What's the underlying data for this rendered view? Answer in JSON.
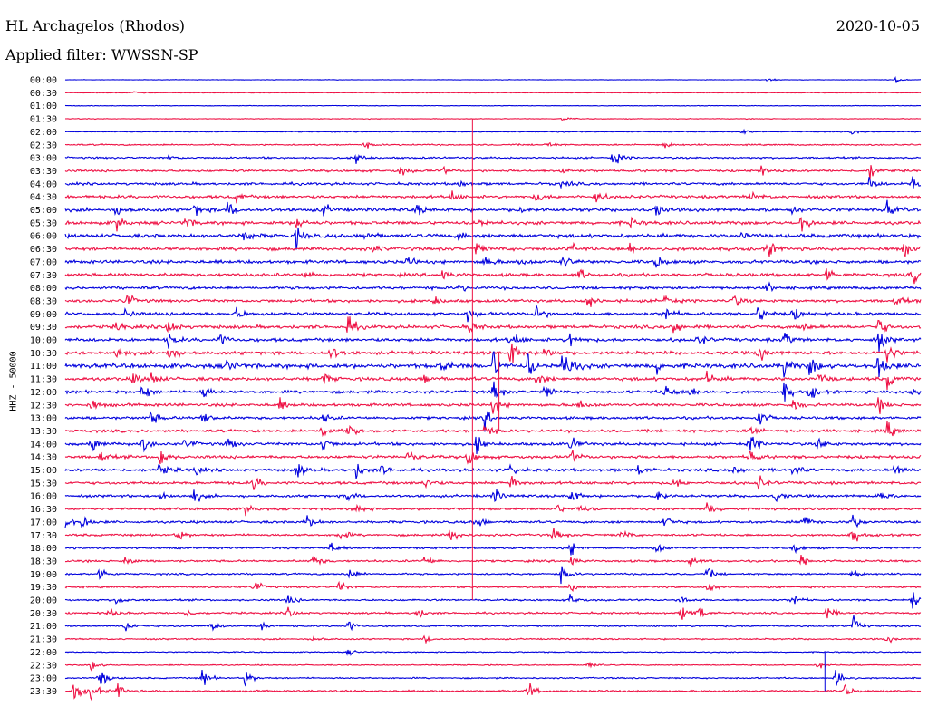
{
  "header": {
    "station": "HL Archagelos (Rhodos)",
    "date": "2020-10-05",
    "filter": "Applied filter: WWSSN-SP"
  },
  "chart_data": {
    "type": "line",
    "title": "HL Archagelos (Rhodos)",
    "subtitle": "Applied filter: WWSSN-SP",
    "date": "2020-10-05",
    "ylabel": "HHZ - 50000",
    "trace_colors": [
      "#0000dd",
      "#ee1144"
    ],
    "tick_labels": [
      "00:00",
      "00:30",
      "01:00",
      "01:30",
      "02:00",
      "02:30",
      "03:00",
      "03:30",
      "04:00",
      "04:30",
      "05:00",
      "05:30",
      "06:00",
      "06:30",
      "07:00",
      "07:30",
      "08:00",
      "08:30",
      "09:00",
      "09:30",
      "10:00",
      "10:30",
      "11:00",
      "11:30",
      "12:00",
      "12:30",
      "13:00",
      "13:30",
      "14:00",
      "14:30",
      "15:00",
      "15:30",
      "16:00",
      "16:30",
      "17:00",
      "17:30",
      "18:00",
      "18:30",
      "19:00",
      "19:30",
      "20:00",
      "20:30",
      "21:00",
      "21:30",
      "22:00",
      "22:30",
      "23:00",
      "23:30"
    ],
    "noise_level": [
      0.3,
      0.4,
      0.3,
      0.4,
      0.5,
      0.8,
      1.0,
      1.2,
      1.4,
      1.6,
      1.8,
      1.8,
      2.0,
      1.8,
      1.8,
      1.8,
      1.6,
      1.6,
      1.7,
      1.8,
      1.8,
      1.8,
      2.4,
      1.8,
      1.6,
      1.6,
      1.5,
      1.5,
      1.6,
      1.6,
      1.6,
      1.5,
      1.4,
      1.3,
      1.3,
      1.2,
      1.1,
      1.1,
      1.0,
      1.0,
      1.0,
      1.0,
      0.9,
      0.8,
      0.6,
      0.6,
      0.8,
      1.0
    ],
    "events": [
      [
        [
          0.82,
          3
        ],
        [
          0.97,
          4
        ]
      ],
      [
        [
          0.08,
          3
        ]
      ],
      [],
      [
        [
          0.58,
          3
        ]
      ],
      [
        [
          0.79,
          4
        ],
        [
          0.92,
          3
        ]
      ],
      [
        [
          0.35,
          4
        ],
        [
          0.56,
          6
        ],
        [
          0.7,
          6
        ]
      ],
      [
        [
          0.12,
          3
        ],
        [
          0.34,
          8
        ],
        [
          0.64,
          12
        ]
      ],
      [
        [
          0.39,
          9
        ],
        [
          0.44,
          5
        ],
        [
          0.58,
          6
        ],
        [
          0.81,
          8
        ],
        [
          0.94,
          12
        ]
      ],
      [
        [
          0.46,
          5
        ],
        [
          0.58,
          6
        ],
        [
          0.94,
          8
        ],
        [
          0.99,
          10
        ]
      ],
      [
        [
          0.2,
          6
        ],
        [
          0.45,
          8
        ],
        [
          0.55,
          9
        ],
        [
          0.62,
          10
        ],
        [
          0.8,
          8
        ]
      ],
      [
        [
          0.06,
          10
        ],
        [
          0.15,
          8
        ],
        [
          0.19,
          12
        ],
        [
          0.3,
          10
        ],
        [
          0.41,
          8
        ],
        [
          0.53,
          6
        ],
        [
          0.69,
          8
        ],
        [
          0.85,
          8
        ],
        [
          0.96,
          10
        ]
      ],
      [
        [
          0.06,
          9
        ],
        [
          0.14,
          7
        ],
        [
          0.27,
          10
        ],
        [
          0.48,
          8
        ],
        [
          0.66,
          6
        ],
        [
          0.86,
          12
        ]
      ],
      [
        [
          0.21,
          10
        ],
        [
          0.27,
          12
        ],
        [
          0.35,
          9
        ],
        [
          0.46,
          6
        ],
        [
          0.79,
          6
        ]
      ],
      [
        [
          0.36,
          6
        ],
        [
          0.48,
          8
        ],
        [
          0.59,
          8
        ],
        [
          0.66,
          9
        ],
        [
          0.82,
          12
        ],
        [
          0.98,
          9
        ]
      ],
      [
        [
          0.4,
          8
        ],
        [
          0.49,
          10
        ],
        [
          0.53,
          6
        ],
        [
          0.58,
          12
        ],
        [
          0.69,
          10
        ]
      ],
      [
        [
          0.28,
          6
        ],
        [
          0.44,
          7
        ],
        [
          0.6,
          8
        ],
        [
          0.89,
          10
        ],
        [
          0.99,
          10
        ]
      ],
      [
        [
          0.46,
          5
        ],
        [
          0.82,
          6
        ]
      ],
      [
        [
          0.07,
          12
        ],
        [
          0.43,
          6
        ],
        [
          0.61,
          10
        ],
        [
          0.7,
          9
        ],
        [
          0.78,
          10
        ],
        [
          0.97,
          8
        ]
      ],
      [
        [
          0.07,
          7
        ],
        [
          0.2,
          8
        ],
        [
          0.47,
          8
        ],
        [
          0.55,
          14
        ],
        [
          0.7,
          12
        ],
        [
          0.81,
          12
        ],
        [
          0.85,
          10
        ]
      ],
      [
        [
          0.06,
          6
        ],
        [
          0.12,
          12
        ],
        [
          0.33,
          14
        ],
        [
          0.47,
          10
        ],
        [
          0.71,
          12
        ],
        [
          0.86,
          8
        ],
        [
          0.95,
          14
        ]
      ],
      [
        [
          0.12,
          10
        ],
        [
          0.18,
          8
        ],
        [
          0.52,
          14
        ],
        [
          0.59,
          10
        ],
        [
          0.74,
          8
        ],
        [
          0.84,
          10
        ],
        [
          0.95,
          14
        ]
      ],
      [
        [
          0.06,
          8
        ],
        [
          0.12,
          14
        ],
        [
          0.31,
          10
        ],
        [
          0.52,
          20
        ],
        [
          0.56,
          10
        ],
        [
          0.81,
          12
        ],
        [
          0.96,
          18
        ]
      ],
      [
        [
          0.19,
          12
        ],
        [
          0.44,
          10
        ],
        [
          0.5,
          20
        ],
        [
          0.54,
          18
        ],
        [
          0.58,
          16
        ],
        [
          0.59,
          12
        ],
        [
          0.69,
          10
        ],
        [
          0.84,
          12
        ],
        [
          0.87,
          14
        ],
        [
          0.95,
          22
        ]
      ],
      [
        [
          0.08,
          9
        ],
        [
          0.1,
          8
        ],
        [
          0.3,
          8
        ],
        [
          0.42,
          8
        ],
        [
          0.55,
          12
        ],
        [
          0.75,
          9
        ],
        [
          0.88,
          8
        ],
        [
          0.96,
          14
        ]
      ],
      [
        [
          0.09,
          12
        ],
        [
          0.16,
          10
        ],
        [
          0.5,
          14
        ],
        [
          0.56,
          10
        ],
        [
          0.7,
          14
        ],
        [
          0.73,
          10
        ],
        [
          0.84,
          12
        ],
        [
          0.87,
          10
        ],
        [
          0.99,
          10
        ]
      ],
      [
        [
          0.03,
          8
        ],
        [
          0.25,
          8
        ],
        [
          0.5,
          12
        ],
        [
          0.6,
          8
        ],
        [
          0.85,
          10
        ],
        [
          0.95,
          10
        ]
      ],
      [
        [
          0.1,
          10
        ],
        [
          0.16,
          10
        ],
        [
          0.3,
          8
        ],
        [
          0.49,
          12
        ],
        [
          0.81,
          12
        ]
      ],
      [
        [
          0.3,
          12
        ],
        [
          0.33,
          10
        ],
        [
          0.49,
          10
        ],
        [
          0.8,
          10
        ],
        [
          0.96,
          12
        ]
      ],
      [
        [
          0.03,
          12
        ],
        [
          0.09,
          10
        ],
        [
          0.14,
          8
        ],
        [
          0.19,
          8
        ],
        [
          0.3,
          10
        ],
        [
          0.48,
          12
        ],
        [
          0.59,
          10
        ],
        [
          0.8,
          14
        ],
        [
          0.88,
          10
        ]
      ],
      [
        [
          0.04,
          8
        ],
        [
          0.11,
          14
        ],
        [
          0.4,
          10
        ],
        [
          0.47,
          12
        ],
        [
          0.59,
          10
        ],
        [
          0.8,
          10
        ]
      ],
      [
        [
          0.11,
          10
        ],
        [
          0.15,
          8
        ],
        [
          0.27,
          12
        ],
        [
          0.34,
          10
        ],
        [
          0.37,
          8
        ],
        [
          0.52,
          10
        ],
        [
          0.67,
          8
        ],
        [
          0.78,
          8
        ],
        [
          0.85,
          10
        ],
        [
          0.97,
          10
        ]
      ],
      [
        [
          0.22,
          10
        ],
        [
          0.42,
          10
        ],
        [
          0.52,
          12
        ],
        [
          0.71,
          8
        ],
        [
          0.81,
          10
        ]
      ],
      [
        [
          0.11,
          8
        ],
        [
          0.15,
          10
        ],
        [
          0.33,
          8
        ],
        [
          0.5,
          10
        ],
        [
          0.59,
          12
        ],
        [
          0.69,
          12
        ],
        [
          0.83,
          8
        ],
        [
          0.95,
          10
        ]
      ],
      [
        [
          0.21,
          8
        ],
        [
          0.34,
          8
        ],
        [
          0.57,
          10
        ],
        [
          0.6,
          8
        ],
        [
          0.75,
          10
        ]
      ],
      [
        [
          0.0,
          10
        ],
        [
          0.02,
          10
        ],
        [
          0.28,
          12
        ],
        [
          0.48,
          10
        ],
        [
          0.7,
          10
        ],
        [
          0.86,
          14
        ],
        [
          0.92,
          12
        ]
      ],
      [
        [
          0.13,
          8
        ],
        [
          0.32,
          10
        ],
        [
          0.45,
          12
        ],
        [
          0.57,
          9
        ],
        [
          0.65,
          8
        ],
        [
          0.92,
          12
        ]
      ],
      [
        [
          0.31,
          8
        ],
        [
          0.59,
          10
        ],
        [
          0.69,
          8
        ],
        [
          0.85,
          8
        ]
      ],
      [
        [
          0.07,
          8
        ],
        [
          0.29,
          10
        ],
        [
          0.42,
          9
        ],
        [
          0.59,
          8
        ],
        [
          0.73,
          8
        ],
        [
          0.86,
          10
        ]
      ],
      [
        [
          0.04,
          10
        ],
        [
          0.33,
          10
        ],
        [
          0.58,
          12
        ],
        [
          0.75,
          8
        ],
        [
          0.92,
          8
        ]
      ],
      [
        [
          0.22,
          10
        ],
        [
          0.32,
          10
        ],
        [
          0.59,
          8
        ],
        [
          0.75,
          10
        ]
      ],
      [
        [
          0.06,
          8
        ],
        [
          0.26,
          8
        ],
        [
          0.59,
          8
        ],
        [
          0.72,
          8
        ],
        [
          0.85,
          10
        ],
        [
          0.99,
          12
        ]
      ],
      [
        [
          0.05,
          8
        ],
        [
          0.14,
          6
        ],
        [
          0.26,
          8
        ],
        [
          0.41,
          10
        ],
        [
          0.72,
          12
        ],
        [
          0.74,
          10
        ],
        [
          0.89,
          9
        ]
      ],
      [
        [
          0.07,
          10
        ],
        [
          0.17,
          8
        ],
        [
          0.23,
          6
        ],
        [
          0.33,
          8
        ],
        [
          0.92,
          12
        ]
      ],
      [
        [
          0.29,
          5
        ],
        [
          0.42,
          6
        ],
        [
          0.96,
          5
        ]
      ],
      [
        [
          0.33,
          4
        ]
      ],
      [
        [
          0.03,
          8
        ],
        [
          0.61,
          6
        ],
        [
          0.88,
          6
        ]
      ],
      [
        [
          0.04,
          14
        ],
        [
          0.16,
          12
        ],
        [
          0.21,
          10
        ],
        [
          0.9,
          18
        ]
      ],
      [
        [
          0.01,
          16
        ],
        [
          0.03,
          14
        ],
        [
          0.06,
          12
        ],
        [
          0.54,
          14
        ],
        [
          0.91,
          10
        ]
      ]
    ],
    "long_spikes": [
      {
        "row": 3,
        "x": 0.476,
        "to_row": 40
      },
      {
        "row": 21,
        "x": 0.507,
        "to_row": 27
      },
      {
        "row": 44,
        "x": 0.888,
        "to_row": 47
      }
    ]
  }
}
